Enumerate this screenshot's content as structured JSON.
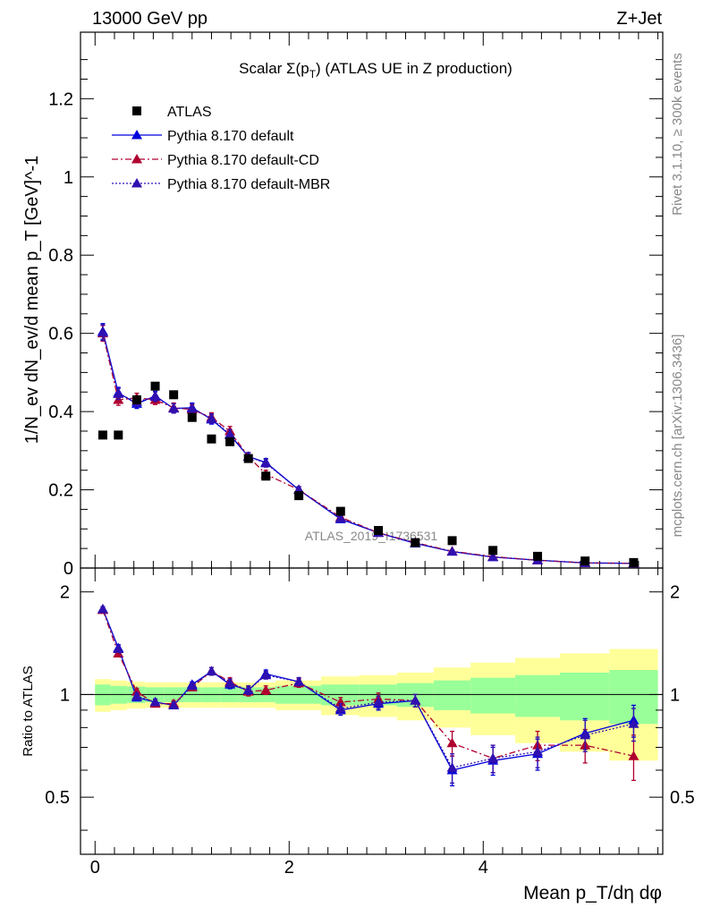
{
  "header": {
    "energy_label": "13000 GeV pp",
    "process_label": "Z+Jet",
    "plot_title": "Scalar Σ(p",
    "plot_title_sub": "T",
    "plot_title_tail": ") (ATLAS UE in Z production)",
    "watermark": "ATLAS_2019_I1736531",
    "side_text_rivet": "Rivet 3.1.10, ≥ 300k events",
    "side_text_mcplots": "mcplots.cern.ch [arXiv:1306.3436]"
  },
  "axes": {
    "main_ylabel": "1/N_ev dN_ev/d mean p_T [GeV]^-1",
    "ratio_ylabel": "Ratio to ATLAS",
    "xlabel": "Mean p_T/dη dφ",
    "main_yticks": [
      "0",
      "0.2",
      "0.4",
      "0.6",
      "0.8",
      "1",
      "1.2"
    ],
    "ratio_yticks": [
      "0.5",
      "1",
      "2"
    ],
    "xticks": [
      "0",
      "2",
      "4"
    ]
  },
  "legend": [
    {
      "label": "ATLAS",
      "style": "data",
      "color": "#000000"
    },
    {
      "label": "Pythia 8.170 default",
      "style": "solid",
      "color": "#0000dd"
    },
    {
      "label": "Pythia 8.170 default-CD",
      "style": "dashdot",
      "color": "#b00030"
    },
    {
      "label": "Pythia 8.170 default-MBR",
      "style": "dotted",
      "color": "#3010b0"
    }
  ],
  "chart_data": {
    "type": "scatter",
    "title": "Scalar Σ(p_T) (ATLAS UE in Z production)",
    "xlabel": "Mean p_T/dη dφ",
    "ylabel": "1/N_ev dN_ev/d mean p_T [GeV]^-1",
    "xlim": [
      -0.15,
      5.85
    ],
    "ylim": [
      0,
      1.37
    ],
    "ratio_ylim": [
      0.34,
      2.35
    ],
    "x": [
      0.08,
      0.24,
      0.43,
      0.62,
      0.81,
      1.0,
      1.2,
      1.39,
      1.58,
      1.76,
      2.1,
      2.53,
      2.92,
      3.3,
      3.68,
      4.1,
      4.56,
      5.05,
      5.55
    ],
    "atlas": [
      0.34,
      0.34,
      0.43,
      0.465,
      0.443,
      0.385,
      0.33,
      0.323,
      0.28,
      0.235,
      0.185,
      0.145,
      0.096,
      0.065,
      0.07,
      0.045,
      0.03,
      0.018,
      0.014
    ],
    "band_edges": [
      0.0,
      0.16,
      0.33,
      0.52,
      0.71,
      0.9,
      1.1,
      1.29,
      1.48,
      1.67,
      1.86,
      2.33,
      2.72,
      3.11,
      3.49,
      3.87,
      4.33,
      4.79,
      5.3,
      5.8
    ],
    "band_green": [
      0.07,
      0.06,
      0.055,
      0.05,
      0.05,
      0.05,
      0.05,
      0.05,
      0.05,
      0.05,
      0.06,
      0.07,
      0.07,
      0.08,
      0.1,
      0.12,
      0.14,
      0.16,
      0.18
    ],
    "band_yellow": [
      0.11,
      0.1,
      0.09,
      0.085,
      0.085,
      0.085,
      0.085,
      0.085,
      0.085,
      0.085,
      0.1,
      0.13,
      0.14,
      0.16,
      0.2,
      0.24,
      0.28,
      0.32,
      0.36
    ],
    "series": [
      {
        "name": "Pythia 8.170 default",
        "color": "#0000dd",
        "dash": "",
        "values": [
          0.605,
          0.448,
          0.42,
          0.44,
          0.408,
          0.41,
          0.38,
          0.34,
          0.285,
          0.27,
          0.2,
          0.125,
          0.09,
          0.063,
          0.042,
          0.028,
          0.02,
          0.013,
          0.012
        ],
        "errors": [
          0.02,
          0.014,
          0.012,
          0.012,
          0.012,
          0.012,
          0.012,
          0.012,
          0.01,
          0.01,
          0.008,
          0.006,
          0.005,
          0.004,
          0.003,
          0.002,
          0.002,
          0.0015,
          0.0015
        ],
        "ratio": [
          1.78,
          1.37,
          0.98,
          0.95,
          0.93,
          1.07,
          1.17,
          1.07,
          1.03,
          1.15,
          1.09,
          0.9,
          0.94,
          0.96,
          0.6,
          0.64,
          0.67,
          0.77,
          0.84
        ],
        "ratio_err": [
          0.03,
          0.03,
          0.02,
          0.02,
          0.02,
          0.02,
          0.03,
          0.03,
          0.03,
          0.03,
          0.03,
          0.03,
          0.04,
          0.04,
          0.06,
          0.06,
          0.07,
          0.08,
          0.09
        ]
      },
      {
        "name": "Pythia 8.170 default-CD",
        "color": "#b00030",
        "dash": "7,3,2,3",
        "values": [
          0.6,
          0.43,
          0.435,
          0.43,
          0.41,
          0.405,
          0.385,
          0.35,
          0.285,
          0.24,
          0.2,
          0.13,
          0.09,
          0.065,
          0.043,
          0.029,
          0.02,
          0.013,
          0.012
        ],
        "errors": [
          0.02,
          0.014,
          0.012,
          0.012,
          0.012,
          0.012,
          0.012,
          0.012,
          0.01,
          0.01,
          0.008,
          0.006,
          0.005,
          0.004,
          0.003,
          0.002,
          0.002,
          0.0015,
          0.0015
        ],
        "ratio": [
          1.77,
          1.32,
          1.02,
          0.94,
          0.94,
          1.05,
          1.17,
          1.09,
          1.02,
          1.03,
          1.08,
          0.95,
          0.97,
          0.96,
          0.72,
          0.65,
          0.71,
          0.71,
          0.66
        ],
        "ratio_err": [
          0.03,
          0.03,
          0.02,
          0.02,
          0.02,
          0.02,
          0.03,
          0.03,
          0.03,
          0.03,
          0.03,
          0.03,
          0.04,
          0.04,
          0.06,
          0.06,
          0.07,
          0.08,
          0.1
        ]
      },
      {
        "name": "Pythia 8.170 default-MBR",
        "color": "#3010b0",
        "dash": "2,2",
        "values": [
          0.602,
          0.445,
          0.425,
          0.438,
          0.408,
          0.408,
          0.382,
          0.342,
          0.285,
          0.268,
          0.2,
          0.127,
          0.09,
          0.064,
          0.042,
          0.028,
          0.02,
          0.013,
          0.012
        ],
        "errors": [
          0.02,
          0.014,
          0.012,
          0.012,
          0.012,
          0.012,
          0.012,
          0.012,
          0.01,
          0.01,
          0.008,
          0.006,
          0.005,
          0.004,
          0.003,
          0.002,
          0.002,
          0.0015,
          0.0015
        ],
        "ratio": [
          1.78,
          1.36,
          0.99,
          0.95,
          0.93,
          1.06,
          1.17,
          1.08,
          1.03,
          1.14,
          1.09,
          0.91,
          0.95,
          0.96,
          0.61,
          0.65,
          0.68,
          0.76,
          0.82
        ],
        "ratio_err": [
          0.03,
          0.03,
          0.02,
          0.02,
          0.02,
          0.02,
          0.03,
          0.03,
          0.03,
          0.03,
          0.03,
          0.03,
          0.04,
          0.04,
          0.06,
          0.06,
          0.07,
          0.08,
          0.09
        ]
      }
    ]
  }
}
